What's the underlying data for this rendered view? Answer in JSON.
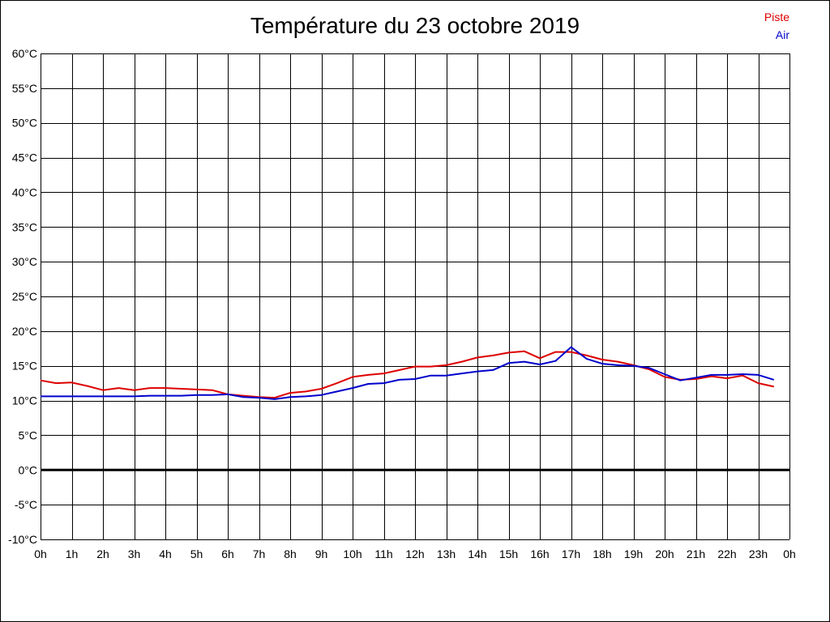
{
  "chart_data": {
    "type": "line",
    "title": "Température du 23 octobre 2019",
    "xlabel": "",
    "ylabel": "",
    "xlim": [
      0,
      24
    ],
    "ylim": [
      -10,
      60
    ],
    "grid": true,
    "legend_position": "top-right",
    "x_tick_labels": [
      "0h",
      "1h",
      "2h",
      "3h",
      "4h",
      "5h",
      "6h",
      "7h",
      "8h",
      "9h",
      "10h",
      "11h",
      "12h",
      "13h",
      "14h",
      "15h",
      "16h",
      "17h",
      "18h",
      "19h",
      "20h",
      "21h",
      "22h",
      "23h",
      "0h"
    ],
    "y_tick_values": [
      60,
      55,
      50,
      45,
      40,
      35,
      30,
      25,
      20,
      15,
      10,
      5,
      0,
      -5,
      -10
    ],
    "y_tick_labels": [
      "60°C",
      "55°C",
      "50°C",
      "45°C",
      "40°C",
      "35°C",
      "30°C",
      "25°C",
      "20°C",
      "15°C",
      "10°C",
      "5°C",
      "0°C",
      "-5°C",
      "-10°C"
    ],
    "zero_line": true,
    "series": [
      {
        "name": "Piste",
        "color": "#dd0000",
        "x": [
          0,
          0.5,
          1,
          1.5,
          2,
          2.5,
          3,
          3.5,
          4,
          4.5,
          5,
          5.5,
          6,
          6.5,
          7,
          7.5,
          8,
          8.5,
          9,
          9.5,
          10,
          10.5,
          11,
          11.5,
          12,
          12.5,
          13,
          13.5,
          14,
          14.5,
          15,
          15.5,
          16,
          16.5,
          17,
          17.5,
          18,
          18.5,
          19,
          19.5,
          20,
          20.5,
          21,
          21.5,
          22,
          22.5,
          23,
          23.5
        ],
        "y": [
          12.9,
          12.5,
          12.6,
          12.1,
          11.5,
          11.8,
          11.5,
          11.8,
          11.8,
          11.7,
          11.6,
          11.5,
          10.9,
          10.7,
          10.5,
          10.4,
          11.1,
          11.3,
          11.7,
          12.5,
          13.4,
          13.7,
          13.9,
          14.4,
          14.9,
          14.9,
          15.1,
          15.6,
          16.2,
          16.5,
          16.9,
          17.1,
          16.1,
          17.0,
          17.0,
          16.5,
          15.9,
          15.6,
          15.1,
          14.5,
          13.4,
          13.0,
          13.1,
          13.5,
          13.2,
          13.6,
          12.5,
          12.0
        ]
      },
      {
        "name": "Air",
        "color": "#0000cc",
        "x": [
          0,
          0.5,
          1,
          1.5,
          2,
          2.5,
          3,
          3.5,
          4,
          4.5,
          5,
          5.5,
          6,
          6.5,
          7,
          7.5,
          8,
          8.5,
          9,
          9.5,
          10,
          10.5,
          11,
          11.5,
          12,
          12.5,
          13,
          13.5,
          14,
          14.5,
          15,
          15.5,
          16,
          16.5,
          17,
          17.5,
          18,
          18.5,
          19,
          19.5,
          20,
          20.5,
          21,
          21.5,
          22,
          22.5,
          23,
          23.5
        ],
        "y": [
          10.6,
          10.6,
          10.6,
          10.6,
          10.6,
          10.6,
          10.6,
          10.7,
          10.7,
          10.7,
          10.8,
          10.8,
          10.9,
          10.5,
          10.4,
          10.2,
          10.5,
          10.6,
          10.8,
          11.3,
          11.8,
          12.4,
          12.5,
          13.0,
          13.1,
          13.6,
          13.6,
          13.9,
          14.2,
          14.4,
          15.4,
          15.6,
          15.2,
          15.7,
          17.7,
          16.0,
          15.3,
          15.1,
          15.0,
          14.7,
          13.8,
          12.9,
          13.3,
          13.7,
          13.7,
          13.8,
          13.7,
          13.0
        ]
      }
    ]
  }
}
